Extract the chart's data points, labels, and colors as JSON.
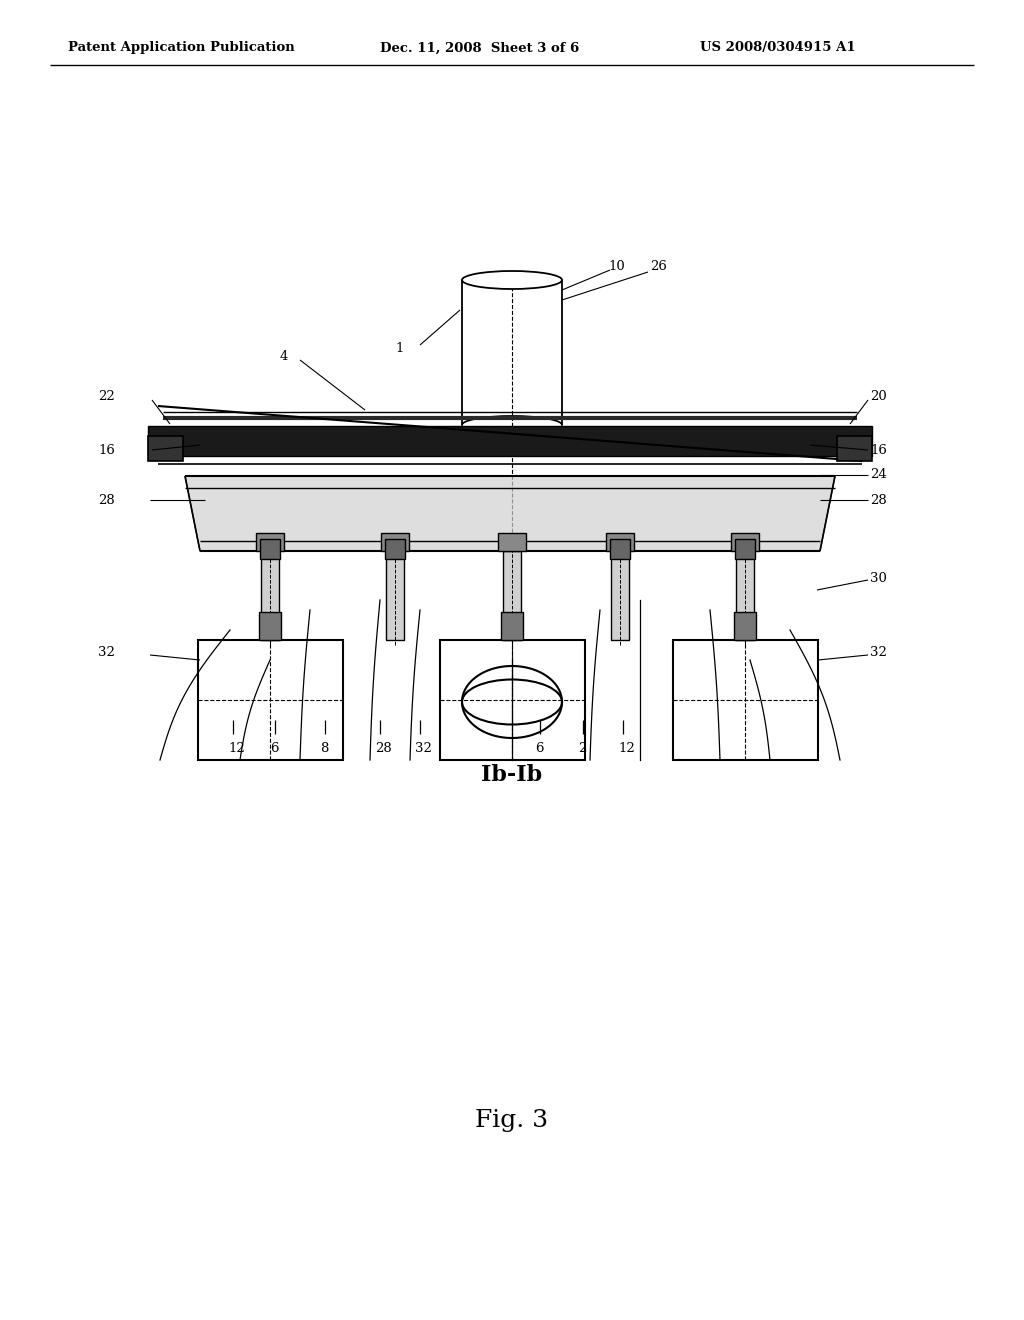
{
  "bg_color": "#ffffff",
  "header_left": "Patent Application Publication",
  "header_mid": "Dec. 11, 2008  Sheet 3 of 6",
  "header_right": "US 2008/0304915 A1",
  "section_label": "Ib-Ib",
  "fig_label": "Fig. 3",
  "fig_width": 10.24,
  "fig_height": 13.2,
  "dpi": 100
}
